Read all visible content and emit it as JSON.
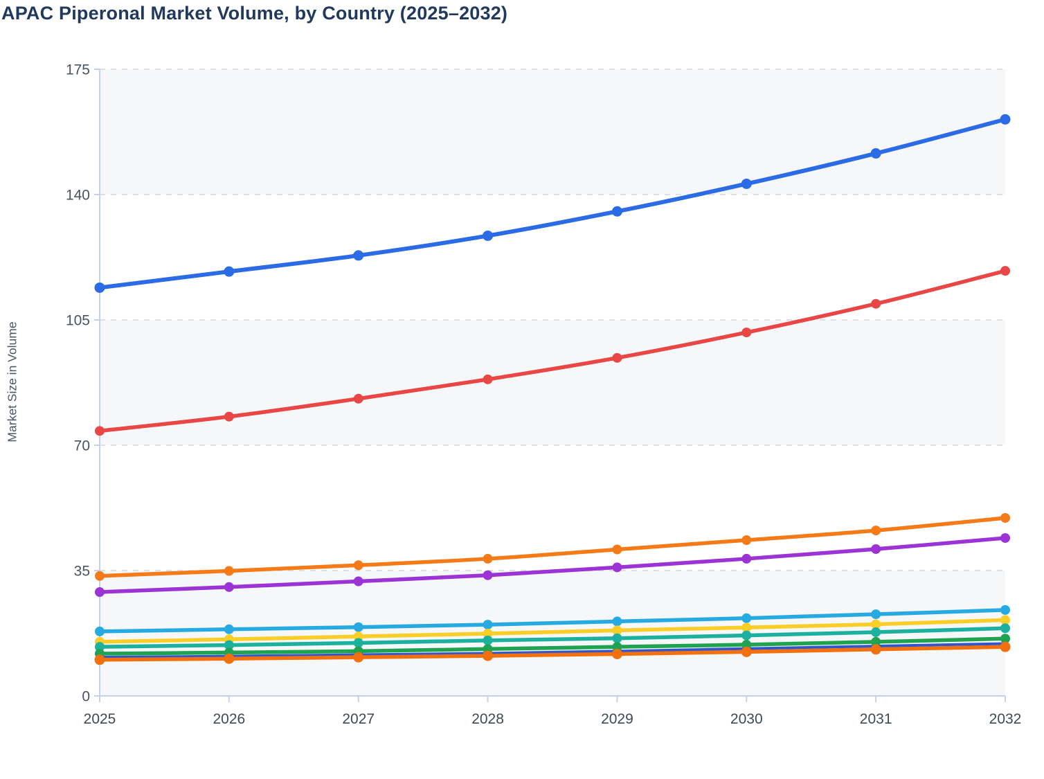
{
  "chart": {
    "title": "APAC Piperonal Market Volume, by Country (2025–2032)",
    "y_axis_title": "Market Size in Volume"
  },
  "chart_data": {
    "type": "line",
    "title": "APAC Piperonal Market Volume, by Country (2025–2032)",
    "xlabel": "",
    "ylabel": "Market Size in Volume",
    "x": [
      2025,
      2026,
      2027,
      2028,
      2029,
      2030,
      2031,
      2032
    ],
    "ylim": [
      0,
      175
    ],
    "yticks": [
      0,
      35,
      70,
      105,
      140,
      175
    ],
    "grid": "horizontal-dashed",
    "legend": "none",
    "band_fill_alternating": true,
    "series": [
      {
        "name": "blue",
        "color": "#2b6be6",
        "line_width": 6,
        "marker_radius": 7.5,
        "values": [
          114.0,
          118.5,
          123.0,
          128.5,
          135.3,
          143.0,
          151.5,
          161.0
        ]
      },
      {
        "name": "red",
        "color": "#e94745",
        "line_width": 5.5,
        "marker_radius": 7,
        "values": [
          74.0,
          78.0,
          83.0,
          88.4,
          94.4,
          101.5,
          109.5,
          118.7
        ]
      },
      {
        "name": "orange",
        "color": "#f57a18",
        "line_width": 5.5,
        "marker_radius": 7,
        "values": [
          33.5,
          34.9,
          36.5,
          38.3,
          40.9,
          43.5,
          46.2,
          49.7
        ]
      },
      {
        "name": "purple",
        "color": "#9c33d4",
        "line_width": 5.5,
        "marker_radius": 7,
        "values": [
          29.0,
          30.4,
          32.0,
          33.7,
          35.9,
          38.3,
          41.0,
          44.1
        ]
      },
      {
        "name": "cyan",
        "color": "#27a9e1",
        "line_width": 5.5,
        "marker_radius": 7,
        "values": [
          18.0,
          18.6,
          19.2,
          19.9,
          20.8,
          21.7,
          22.8,
          24.0
        ]
      },
      {
        "name": "yellow",
        "color": "#f9ce26",
        "line_width": 5.5,
        "marker_radius": 7,
        "values": [
          15.1,
          15.8,
          16.6,
          17.4,
          18.3,
          19.1,
          20.0,
          21.2
        ]
      },
      {
        "name": "royal-blue",
        "color": "#3155cd",
        "line_width": 4,
        "marker_radius": 4.5,
        "values": [
          10.8,
          11.1,
          11.5,
          11.9,
          12.5,
          13.2,
          13.9,
          14.6
        ]
      },
      {
        "name": "teal",
        "color": "#1cb09e",
        "line_width": 5.5,
        "marker_radius": 7,
        "values": [
          13.7,
          14.2,
          14.8,
          15.5,
          16.1,
          16.9,
          17.8,
          18.9
        ]
      },
      {
        "name": "green",
        "color": "#1fa351",
        "line_width": 5.5,
        "marker_radius": 7,
        "values": [
          11.8,
          12.1,
          12.5,
          13.1,
          13.7,
          14.3,
          15.1,
          16.0
        ]
      },
      {
        "name": "dark-orange",
        "color": "#f2700e",
        "line_width": 5.5,
        "marker_radius": 7.5,
        "values": [
          10.1,
          10.4,
          10.8,
          11.2,
          11.7,
          12.3,
          13.0,
          13.7
        ]
      }
    ],
    "style_colors": {
      "title": "#21395c",
      "axis_line": "#c5cfee",
      "tick_mark": "#c5cfee",
      "gridline": "#dcdfe4",
      "band_fill": "#f6f7f9",
      "y_tick_label": "#4b5360",
      "x_tick_label": "#3f4956",
      "axis_title": "#4a5568"
    }
  }
}
